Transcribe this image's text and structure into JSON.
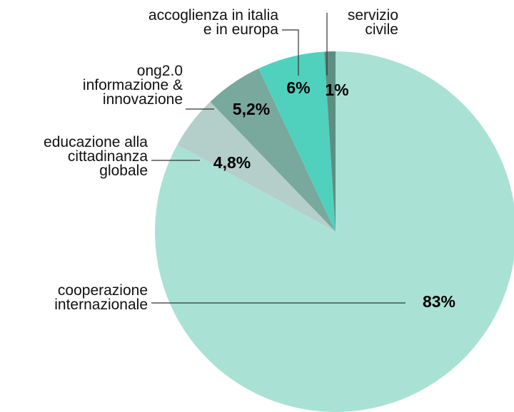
{
  "chart_data": {
    "type": "pie",
    "categories": [
      "cooperazione\ninternazionale",
      "educazione alla\ncittadinanza\nglobale",
      "ong2.0\ninformazione &\ninnovazione",
      "accoglienza in italia\ne in europa",
      "servizio\ncivile"
    ],
    "values": [
      83,
      4.8,
      5.2,
      6,
      1
    ],
    "value_labels": [
      "83%",
      "4,8%",
      "5,2%",
      "6%",
      "1%"
    ],
    "colors": [
      "#a9e2d4",
      "#b4cfc9",
      "#79a89d",
      "#50d1be",
      "#5d8e82"
    ]
  }
}
